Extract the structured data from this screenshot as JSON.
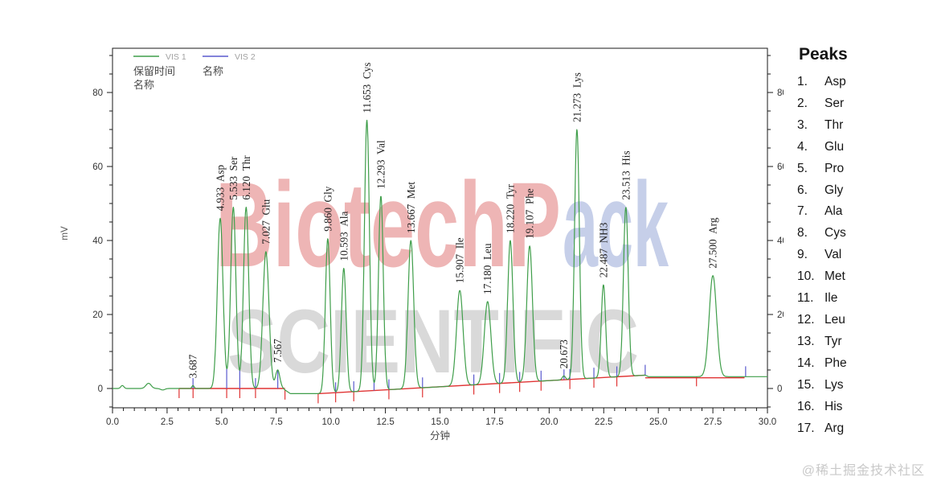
{
  "peaks_panel": {
    "title": "Peaks",
    "items": [
      "Asp",
      "Ser",
      "Thr",
      "Glu",
      "Pro",
      "Gly",
      "Ala",
      "Cys",
      "Val",
      "Met",
      "Ile",
      "Leu",
      "Tyr",
      "Phe",
      "Lys",
      "His",
      "Arg"
    ]
  },
  "footer": {
    "watermark": "@稀土掘金技术社区"
  },
  "watermark": {
    "part1": "BiotechP",
    "part1_color": "#eeb5b5",
    "part2": "ack",
    "part2_color": "#c6cfe9",
    "line2": "SCIENTIFIC",
    "line2_color": "#d9d9d9"
  },
  "chart_data": {
    "type": "line",
    "title": "",
    "x_axis": {
      "label": "分钟",
      "min": 0,
      "max": 30,
      "major_tick": 2.5,
      "minor_tick": 0.5,
      "tick_labels": [
        "0.0",
        "2.5",
        "5.0",
        "7.5",
        "10.0",
        "12.5",
        "15.0",
        "17.5",
        "20.0",
        "22.5",
        "25.0",
        "27.5",
        "30.0"
      ]
    },
    "y_axis": {
      "label": "mV",
      "min": -5.2,
      "max": 92,
      "major_ticks": [
        0,
        20,
        40,
        60,
        80
      ],
      "minor_tick": 5,
      "mirror_right": true
    },
    "legend": {
      "vis1": {
        "label": "VIS 1",
        "color": "#3f9e4a",
        "line1": "保留时间",
        "line2": "名称"
      },
      "vis2": {
        "label": "VIS 2",
        "color": "#5a5ace",
        "line1": "名称"
      }
    },
    "colors": {
      "vis1": "#3f9e4a",
      "vis2": "#5a5ace",
      "baseline": "#e03434",
      "axis": "#1a1a1a",
      "tick_text": "#333333",
      "peak_label": "#222222"
    },
    "peaks": [
      {
        "rt": 3.687,
        "rt_label": "3.687",
        "name": "",
        "apex_mv": 0.8,
        "sigma": 0.05
      },
      {
        "rt": 4.933,
        "rt_label": "4.933",
        "name": "Asp",
        "apex_mv": 46,
        "sigma": 0.13
      },
      {
        "rt": 5.533,
        "rt_label": "5.533",
        "name": "Ser",
        "apex_mv": 49,
        "sigma": 0.12
      },
      {
        "rt": 6.12,
        "rt_label": "6.120",
        "name": "Thr",
        "apex_mv": 49,
        "sigma": 0.12
      },
      {
        "rt": 7.027,
        "rt_label": "7.027",
        "name": "Glu",
        "apex_mv": 37,
        "sigma": 0.14
      },
      {
        "rt": 7.567,
        "rt_label": "7.567",
        "name": "",
        "apex_mv": 5,
        "sigma": 0.1
      },
      {
        "rt": 9.86,
        "rt_label": "9.860",
        "name": "Gly",
        "apex_mv": 40.5,
        "sigma": 0.11
      },
      {
        "rt": 10.593,
        "rt_label": "10.593",
        "name": "Ala",
        "apex_mv": 32.5,
        "sigma": 0.11
      },
      {
        "rt": 11.653,
        "rt_label": "11.653",
        "name": "Cys",
        "apex_mv": 72.5,
        "sigma": 0.115
      },
      {
        "rt": 12.293,
        "rt_label": "12.293",
        "name": "Val",
        "apex_mv": 52,
        "sigma": 0.11
      },
      {
        "rt": 13.667,
        "rt_label": "13.667",
        "name": "Met",
        "apex_mv": 40,
        "sigma": 0.13
      },
      {
        "rt": 15.907,
        "rt_label": "15.907",
        "name": "Ile",
        "apex_mv": 26.5,
        "sigma": 0.15
      },
      {
        "rt": 17.18,
        "rt_label": "17.180",
        "name": "Leu",
        "apex_mv": 23.5,
        "sigma": 0.15
      },
      {
        "rt": 18.22,
        "rt_label": "18.220",
        "name": "Tyr",
        "apex_mv": 40,
        "sigma": 0.12
      },
      {
        "rt": 19.107,
        "rt_label": "19.107",
        "name": "Phe",
        "apex_mv": 38.5,
        "sigma": 0.13
      },
      {
        "rt": 20.673,
        "rt_label": "20.673",
        "name": "",
        "apex_mv": 3.4,
        "sigma": 0.07
      },
      {
        "rt": 21.273,
        "rt_label": "21.273",
        "name": "Lys",
        "apex_mv": 70,
        "sigma": 0.11
      },
      {
        "rt": 22.487,
        "rt_label": "22.487",
        "name": "NH3",
        "apex_mv": 28,
        "sigma": 0.1
      },
      {
        "rt": 23.513,
        "rt_label": "23.513",
        "name": "His",
        "apex_mv": 49,
        "sigma": 0.11
      },
      {
        "rt": 27.5,
        "rt_label": "27.500",
        "name": "Arg",
        "apex_mv": 30.5,
        "sigma": 0.17
      }
    ],
    "red_baseline_segments": [
      {
        "x1": 3.05,
        "y1": 0,
        "x2": 7.9,
        "y2": 0
      },
      {
        "x1": 9.42,
        "y1": -1.4,
        "x2": 24.4,
        "y2": 3.6
      },
      {
        "x1": 24.4,
        "y1": 2.9,
        "x2": 28.95,
        "y2": 2.9
      }
    ],
    "red_ticks": [
      3.05,
      3.69,
      5.23,
      5.83,
      6.55,
      7.9,
      9.42,
      10.22,
      11.05,
      12.66,
      14.2,
      16.55,
      17.73,
      18.65,
      19.63,
      20.95,
      22.05,
      23.1,
      26.75
    ],
    "blue_ticks": [
      3.687,
      5.23,
      5.83,
      6.55,
      7.57,
      10.22,
      11.05,
      11.98,
      12.66,
      14.2,
      16.55,
      17.73,
      18.65,
      19.63,
      20.68,
      20.95,
      22.05,
      23.1,
      24.4,
      29.0
    ],
    "green_baseline_points": [
      [
        0,
        0
      ],
      [
        7.8,
        0
      ],
      [
        8.15,
        -1.4
      ],
      [
        9.42,
        -1.4
      ],
      [
        24.4,
        3.6
      ],
      [
        24.55,
        3.2
      ],
      [
        30,
        3.2
      ]
    ],
    "noise_bumps": [
      {
        "t": 0.45,
        "h": 0.8,
        "s": 0.07
      },
      {
        "t": 1.65,
        "h": 1.4,
        "s": 0.12
      },
      {
        "t": 2.3,
        "h": -0.4,
        "s": 0.1
      }
    ]
  }
}
